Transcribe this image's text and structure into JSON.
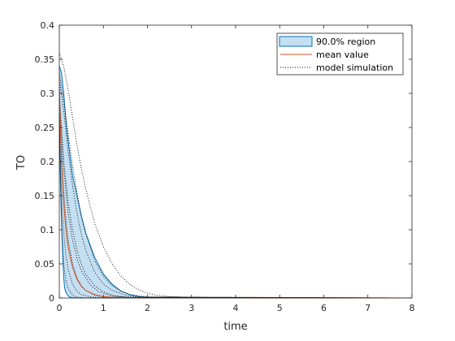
{
  "chart_data": {
    "type": "line",
    "title": "",
    "xlabel": "time",
    "ylabel": "TO",
    "xlim": [
      0,
      8
    ],
    "ylim": [
      0,
      0.4
    ],
    "xticks": [
      0,
      1,
      2,
      3,
      4,
      5,
      6,
      7,
      8
    ],
    "yticks": [
      0,
      0.05,
      0.1,
      0.15,
      0.2,
      0.25,
      0.3,
      0.35,
      0.4
    ],
    "grid": false,
    "legend_position": "top-right",
    "legend": {
      "region_label": "90.0% region",
      "mean_label": "mean value",
      "sim_label": "model simulation"
    },
    "colors": {
      "band_fill": "#c5dff2",
      "band_edge": "#0072bd",
      "mean": "#d95319",
      "sim": "#000000",
      "axis": "#262626"
    },
    "region_upper": {
      "x": [
        0,
        0.05,
        0.1,
        0.15,
        0.2,
        0.3,
        0.4,
        0.5,
        0.6,
        0.8,
        1.0,
        1.2,
        1.4,
        1.6,
        1.8,
        2.0,
        8.0
      ],
      "y": [
        0.34,
        0.33,
        0.3,
        0.26,
        0.23,
        0.18,
        0.15,
        0.12,
        0.095,
        0.06,
        0.035,
        0.02,
        0.01,
        0.005,
        0.002,
        0.001,
        0
      ]
    },
    "region_lower": {
      "x": [
        0,
        0.02,
        0.04,
        0.06,
        0.08,
        0.1,
        0.12,
        0.15,
        0.2,
        0.25,
        0.3,
        0.4,
        0.5,
        8.0
      ],
      "y": [
        0.27,
        0.2,
        0.14,
        0.09,
        0.055,
        0.03,
        0.015,
        0.008,
        0.003,
        0.001,
        0.0005,
        0,
        0,
        0
      ]
    },
    "mean": {
      "x": [
        0,
        0.02,
        0.05,
        0.1,
        0.15,
        0.2,
        0.3,
        0.4,
        0.5,
        0.6,
        0.8,
        1.0,
        1.2,
        1.5,
        2.0,
        8.0
      ],
      "y": [
        0.31,
        0.26,
        0.2,
        0.14,
        0.1,
        0.075,
        0.045,
        0.027,
        0.017,
        0.011,
        0.005,
        0.002,
        0.001,
        0.0003,
        0,
        0
      ]
    },
    "simulations": [
      {
        "x": [
          0,
          0.1,
          0.2,
          0.3,
          0.4,
          0.5,
          0.6,
          0.8,
          1.0,
          1.2,
          1.4,
          1.6,
          1.8,
          2.0,
          2.2,
          2.5,
          3.0,
          8.0
        ],
        "y": [
          0.36,
          0.34,
          0.305,
          0.265,
          0.225,
          0.19,
          0.16,
          0.11,
          0.075,
          0.05,
          0.032,
          0.02,
          0.012,
          0.007,
          0.004,
          0.002,
          0.0005,
          0
        ]
      },
      {
        "x": [
          0,
          0.1,
          0.2,
          0.3,
          0.4,
          0.5,
          0.6,
          0.8,
          1.0,
          1.2,
          1.4,
          1.6,
          2.0,
          8.0
        ],
        "y": [
          0.33,
          0.29,
          0.24,
          0.195,
          0.155,
          0.12,
          0.095,
          0.055,
          0.032,
          0.018,
          0.01,
          0.005,
          0.0015,
          0
        ]
      },
      {
        "x": [
          0,
          0.05,
          0.1,
          0.2,
          0.3,
          0.4,
          0.5,
          0.6,
          0.8,
          1.0,
          1.2,
          1.5,
          8.0
        ],
        "y": [
          0.3,
          0.25,
          0.2,
          0.14,
          0.1,
          0.07,
          0.05,
          0.035,
          0.018,
          0.009,
          0.004,
          0.001,
          0
        ]
      },
      {
        "x": [
          0,
          0.05,
          0.1,
          0.15,
          0.2,
          0.3,
          0.4,
          0.5,
          0.6,
          0.8,
          1.0,
          8.0
        ],
        "y": [
          0.28,
          0.21,
          0.155,
          0.115,
          0.085,
          0.05,
          0.03,
          0.018,
          0.011,
          0.004,
          0.0015,
          0
        ]
      },
      {
        "x": [
          0,
          0.03,
          0.06,
          0.1,
          0.15,
          0.2,
          0.3,
          0.4,
          0.5,
          0.7,
          1.0,
          8.0
        ],
        "y": [
          0.26,
          0.19,
          0.14,
          0.095,
          0.062,
          0.042,
          0.02,
          0.01,
          0.005,
          0.0015,
          0.0003,
          0
        ]
      },
      {
        "x": [
          0,
          0.02,
          0.05,
          0.08,
          0.1,
          0.15,
          0.2,
          0.3,
          0.4,
          0.6,
          8.0
        ],
        "y": [
          0.24,
          0.18,
          0.11,
          0.07,
          0.05,
          0.026,
          0.014,
          0.004,
          0.0012,
          0.0001,
          0
        ]
      },
      {
        "x": [
          0,
          0.1,
          0.2,
          0.3,
          0.4,
          0.5,
          0.6,
          0.8,
          1.0,
          1.2,
          1.5,
          2.0,
          8.0
        ],
        "y": [
          0.32,
          0.275,
          0.215,
          0.165,
          0.125,
          0.093,
          0.07,
          0.038,
          0.02,
          0.011,
          0.004,
          0.0008,
          0
        ]
      },
      {
        "x": [
          0,
          0.05,
          0.1,
          0.2,
          0.3,
          0.4,
          0.5,
          0.7,
          0.9,
          1.2,
          1.6,
          8.0
        ],
        "y": [
          0.29,
          0.24,
          0.19,
          0.125,
          0.085,
          0.058,
          0.04,
          0.019,
          0.009,
          0.003,
          0.0006,
          0
        ]
      }
    ]
  }
}
